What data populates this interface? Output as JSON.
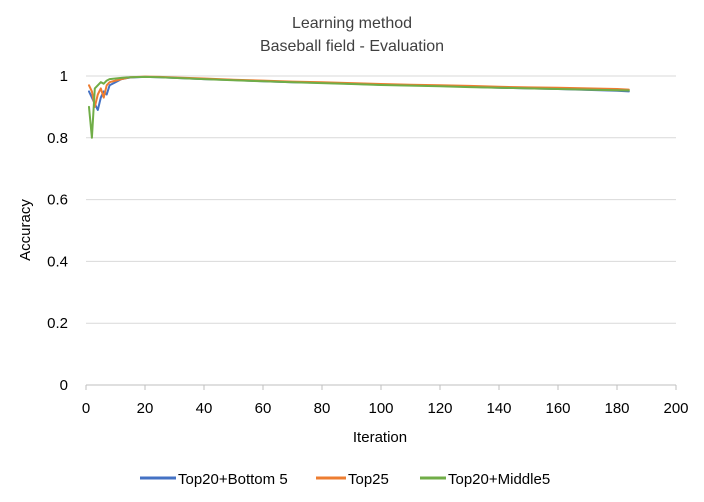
{
  "chart_data": {
    "type": "line",
    "title": "Learning method",
    "subtitle": "Baseball field - Evaluation",
    "xlabel": "Iteration",
    "ylabel": "Accuracy",
    "xlim": [
      0,
      200
    ],
    "ylim": [
      0,
      1
    ],
    "x_ticks": [
      "0",
      "20",
      "40",
      "60",
      "80",
      "100",
      "120",
      "140",
      "160",
      "180",
      "200"
    ],
    "y_ticks": [
      "0",
      "0.2",
      "0.4",
      "0.6",
      "0.8",
      "1"
    ],
    "grid": "horizontal",
    "legend_position": "bottom",
    "series": [
      {
        "name": "Top20+Bottom 5",
        "color": "#4472C4",
        "x": [
          1,
          2,
          3,
          4,
          5,
          6,
          7,
          8,
          10,
          12,
          15,
          20,
          25,
          30,
          40,
          50,
          60,
          70,
          80,
          90,
          100,
          110,
          120,
          130,
          140,
          150,
          160,
          170,
          180,
          184
        ],
        "y": [
          0.95,
          0.93,
          0.91,
          0.89,
          0.93,
          0.95,
          0.94,
          0.97,
          0.98,
          0.99,
          0.995,
          0.997,
          0.996,
          0.994,
          0.99,
          0.987,
          0.983,
          0.98,
          0.978,
          0.975,
          0.972,
          0.97,
          0.968,
          0.965,
          0.962,
          0.96,
          0.958,
          0.955,
          0.952,
          0.95
        ]
      },
      {
        "name": "Top25",
        "color": "#ED7D31",
        "x": [
          1,
          2,
          3,
          4,
          5,
          6,
          7,
          8,
          10,
          12,
          15,
          20,
          25,
          30,
          40,
          50,
          60,
          70,
          80,
          90,
          100,
          110,
          120,
          130,
          140,
          150,
          160,
          170,
          180,
          184
        ],
        "y": [
          0.97,
          0.95,
          0.9,
          0.94,
          0.96,
          0.93,
          0.97,
          0.98,
          0.985,
          0.99,
          0.996,
          0.998,
          0.997,
          0.995,
          0.992,
          0.988,
          0.985,
          0.982,
          0.98,
          0.977,
          0.974,
          0.972,
          0.97,
          0.968,
          0.965,
          0.963,
          0.962,
          0.96,
          0.958,
          0.956
        ]
      },
      {
        "name": "Top20+Middle5",
        "color": "#70AD47",
        "x": [
          1,
          2,
          3,
          4,
          5,
          6,
          7,
          8,
          10,
          12,
          15,
          20,
          25,
          30,
          40,
          50,
          60,
          70,
          80,
          90,
          100,
          110,
          120,
          130,
          140,
          150,
          160,
          170,
          180,
          184
        ],
        "y": [
          0.9,
          0.8,
          0.96,
          0.97,
          0.98,
          0.975,
          0.985,
          0.99,
          0.992,
          0.994,
          0.996,
          0.997,
          0.996,
          0.994,
          0.99,
          0.986,
          0.983,
          0.98,
          0.977,
          0.974,
          0.971,
          0.969,
          0.967,
          0.964,
          0.962,
          0.96,
          0.958,
          0.956,
          0.954,
          0.953
        ]
      }
    ]
  }
}
